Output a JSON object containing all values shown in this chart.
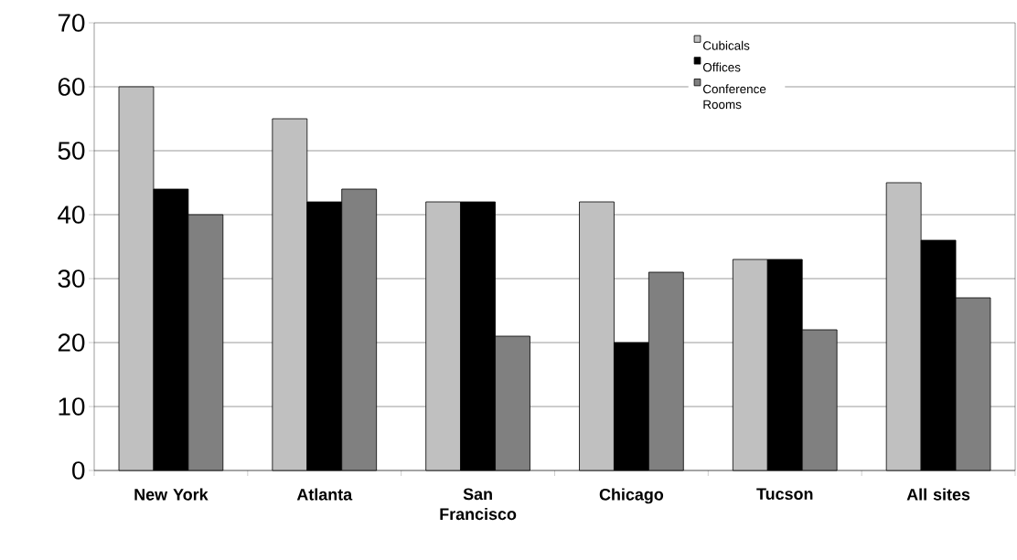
{
  "chart_data": {
    "type": "bar",
    "categories": [
      "New York",
      "Atlanta",
      "San Francisco",
      "Chicago",
      "Tucson",
      "All sites"
    ],
    "series": [
      {
        "name": "Cubicals",
        "color": "#c0c0c0",
        "values": [
          60,
          55,
          42,
          42,
          33,
          45
        ]
      },
      {
        "name": "Offices",
        "color": "#000000",
        "values": [
          44,
          42,
          42,
          20,
          33,
          36
        ]
      },
      {
        "name": "Conference Rooms",
        "color": "#808080",
        "values": [
          40,
          44,
          21,
          31,
          22,
          27
        ]
      }
    ],
    "ylim": [
      0,
      70
    ],
    "yticks": [
      0,
      10,
      20,
      30,
      40,
      50,
      60,
      70
    ],
    "grid": "y",
    "legend": "top right"
  }
}
